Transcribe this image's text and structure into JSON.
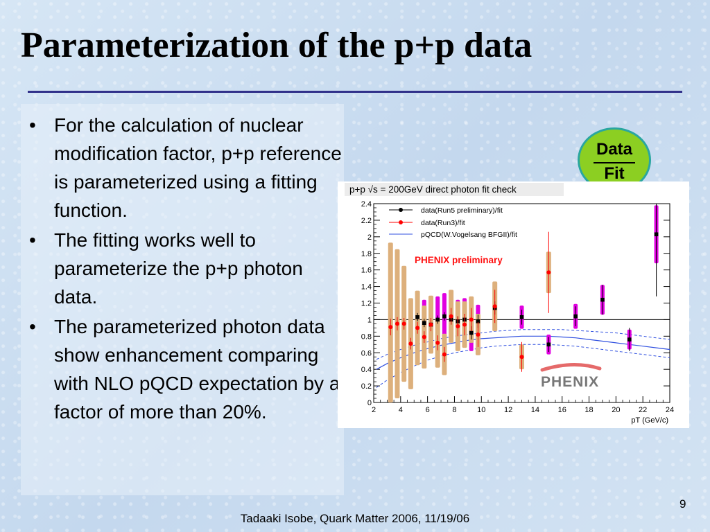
{
  "slide": {
    "title": "Parameterization of the p+p data",
    "bullets": [
      "For the calculation of nuclear modification factor, p+p reference is parameterized using a fitting function.",
      "The fitting works well to parameterize the p+p photon data.",
      "The parameterized photon data show enhancement comparing with NLO pQCD expectation by a factor of more than 20%."
    ],
    "bullet_glyph": "•",
    "badge": {
      "numerator": "Data",
      "denominator": "Fit"
    },
    "footer": "Tadaaki Isobe, Quark Matter 2006, 11/19/06",
    "page_number": "9",
    "colors": {
      "title_rule": "#30308a",
      "badge_fill": "#8ccf22",
      "badge_border": "#2aa6a0"
    }
  },
  "chart_data": {
    "type": "scatter",
    "title": "p+p √s = 200GeV direct photon fit check",
    "xlabel": "pT (GeV/c)",
    "ylabel": "",
    "xlim": [
      2,
      24
    ],
    "ylim": [
      0,
      2.4
    ],
    "x_ticks": [
      2,
      4,
      6,
      8,
      10,
      12,
      14,
      16,
      18,
      20,
      22,
      24
    ],
    "y_ticks": [
      0,
      0.2,
      0.4,
      0.6,
      0.8,
      1,
      1.2,
      1.4,
      1.6,
      1.8,
      2,
      2.2,
      2.4
    ],
    "y_tick_labels": [
      "0",
      "0.2",
      "0.4",
      "0.6",
      "0.8",
      "1",
      "1.2",
      "1.4",
      "1.6",
      "1.8",
      "2",
      "2.2",
      "2.4"
    ],
    "reference_line": 1,
    "annotation": "PHENIX preliminary",
    "logo_text": "PHENIX",
    "legend_position": "top-left",
    "series": [
      {
        "name": "data(Run5 preliminary)/fit",
        "marker": "square",
        "color": "#000000",
        "syst_color": "#e000e0",
        "points": [
          {
            "x": 5.25,
            "y": 1.03,
            "stat": 0.05,
            "syst": 0.3
          },
          {
            "x": 5.75,
            "y": 0.96,
            "stat": 0.05,
            "syst": 0.28
          },
          {
            "x": 6.25,
            "y": 0.94,
            "stat": 0.05,
            "syst": 0.27
          },
          {
            "x": 6.75,
            "y": 1.0,
            "stat": 0.05,
            "syst": 0.28
          },
          {
            "x": 7.25,
            "y": 1.04,
            "stat": 0.05,
            "syst": 0.28
          },
          {
            "x": 7.75,
            "y": 1.0,
            "stat": 0.06,
            "syst": 0.27
          },
          {
            "x": 8.25,
            "y": 0.98,
            "stat": 0.06,
            "syst": 0.26
          },
          {
            "x": 8.75,
            "y": 1.0,
            "stat": 0.07,
            "syst": 0.26
          },
          {
            "x": 9.25,
            "y": 0.84,
            "stat": 0.08,
            "syst": 0.22
          },
          {
            "x": 9.75,
            "y": 0.98,
            "stat": 0.08,
            "syst": 0.2
          },
          {
            "x": 11.0,
            "y": 1.14,
            "stat": 0.08,
            "syst": 0.16
          },
          {
            "x": 13.0,
            "y": 1.03,
            "stat": 0.09,
            "syst": 0.14
          },
          {
            "x": 15.0,
            "y": 0.7,
            "stat": 0.09,
            "syst": 0.12
          },
          {
            "x": 17.0,
            "y": 1.04,
            "stat": 0.12,
            "syst": 0.15
          },
          {
            "x": 19.0,
            "y": 1.24,
            "stat": 0.18,
            "syst": 0.18
          },
          {
            "x": 21.0,
            "y": 0.76,
            "stat": 0.14,
            "syst": 0.12
          },
          {
            "x": 23.0,
            "y": 2.03,
            "stat": 0.75,
            "syst": 0.35
          }
        ]
      },
      {
        "name": "data(Run3)/fit",
        "marker": "circle",
        "color": "#ff0000",
        "syst_color": "#ddb07c",
        "points": [
          {
            "x": 3.25,
            "y": 0.91,
            "stat": 0.1,
            "syst": 1.02
          },
          {
            "x": 3.75,
            "y": 0.95,
            "stat": 0.08,
            "syst": 0.9
          },
          {
            "x": 4.25,
            "y": 0.95,
            "stat": 0.07,
            "syst": 0.7
          },
          {
            "x": 4.75,
            "y": 0.71,
            "stat": 0.07,
            "syst": 0.55
          },
          {
            "x": 5.25,
            "y": 0.9,
            "stat": 0.07,
            "syst": 0.45
          },
          {
            "x": 5.75,
            "y": 0.79,
            "stat": 0.07,
            "syst": 0.38
          },
          {
            "x": 6.25,
            "y": 0.94,
            "stat": 0.08,
            "syst": 0.35
          },
          {
            "x": 6.75,
            "y": 0.72,
            "stat": 0.09,
            "syst": 0.3
          },
          {
            "x": 7.25,
            "y": 0.58,
            "stat": 0.09,
            "syst": 0.25
          },
          {
            "x": 7.75,
            "y": 1.04,
            "stat": 0.1,
            "syst": 0.32
          },
          {
            "x": 8.25,
            "y": 0.92,
            "stat": 0.12,
            "syst": 0.3
          },
          {
            "x": 8.75,
            "y": 0.94,
            "stat": 0.13,
            "syst": 0.28
          },
          {
            "x": 9.25,
            "y": 1.0,
            "stat": 0.14,
            "syst": 0.28
          },
          {
            "x": 9.75,
            "y": 0.82,
            "stat": 0.15,
            "syst": 0.25
          },
          {
            "x": 11.0,
            "y": 1.16,
            "stat": 0.2,
            "syst": 0.3
          },
          {
            "x": 13.0,
            "y": 0.55,
            "stat": 0.18,
            "syst": 0.15
          },
          {
            "x": 15.0,
            "y": 1.57,
            "stat": 0.49,
            "syst": 0.25
          }
        ]
      }
    ],
    "curves": [
      {
        "name": "pQCD(W.Vogelsang BFGII)/fit",
        "color": "#3050e0",
        "x": [
          2.2,
          3,
          4,
          5,
          6,
          7,
          8,
          9,
          10,
          11,
          12,
          13,
          14,
          15,
          16,
          17,
          18,
          19,
          20,
          21,
          22,
          23,
          24
        ],
        "central": [
          0.4,
          0.47,
          0.54,
          0.6,
          0.65,
          0.69,
          0.72,
          0.75,
          0.77,
          0.78,
          0.79,
          0.8,
          0.8,
          0.8,
          0.79,
          0.78,
          0.76,
          0.74,
          0.72,
          0.7,
          0.68,
          0.66,
          0.64
        ],
        "upper": [
          0.52,
          0.58,
          0.64,
          0.69,
          0.73,
          0.77,
          0.8,
          0.82,
          0.84,
          0.86,
          0.87,
          0.88,
          0.88,
          0.88,
          0.88,
          0.87,
          0.86,
          0.85,
          0.84,
          0.82,
          0.8,
          0.78,
          0.76
        ],
        "lower": [
          0.18,
          0.27,
          0.36,
          0.44,
          0.51,
          0.56,
          0.6,
          0.63,
          0.66,
          0.68,
          0.69,
          0.7,
          0.7,
          0.7,
          0.69,
          0.68,
          0.66,
          0.64,
          0.62,
          0.6,
          0.58,
          0.56,
          0.54
        ]
      }
    ]
  }
}
